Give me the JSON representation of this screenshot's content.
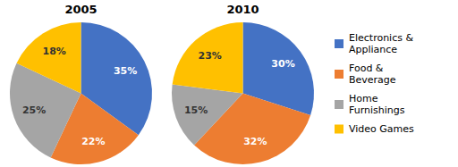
{
  "chart_data": [
    {
      "type": "pie",
      "title": "2005",
      "categories": [
        "Electronics &\nAppliance",
        "Food &\nBeverage",
        "Home\nFurnishings",
        "Video Games"
      ],
      "values": [
        35,
        22,
        25,
        18
      ],
      "value_labels": [
        "35%",
        "22%",
        "25%",
        "18%"
      ],
      "colors": [
        "#4472C4",
        "#ED7D31",
        "#A5A5A5",
        "#FFC000"
      ],
      "data_labels": true,
      "legend": "right"
    },
    {
      "type": "pie",
      "title": "2010",
      "values": [
        30,
        32,
        15,
        23
      ],
      "value_labels": [
        "30%",
        "32%",
        "15%",
        "23%"
      ],
      "colors": [
        "#4472C4",
        "#ED7D31",
        "#A5A5A5",
        "#FFC000"
      ],
      "data_labels": true
    }
  ]
}
